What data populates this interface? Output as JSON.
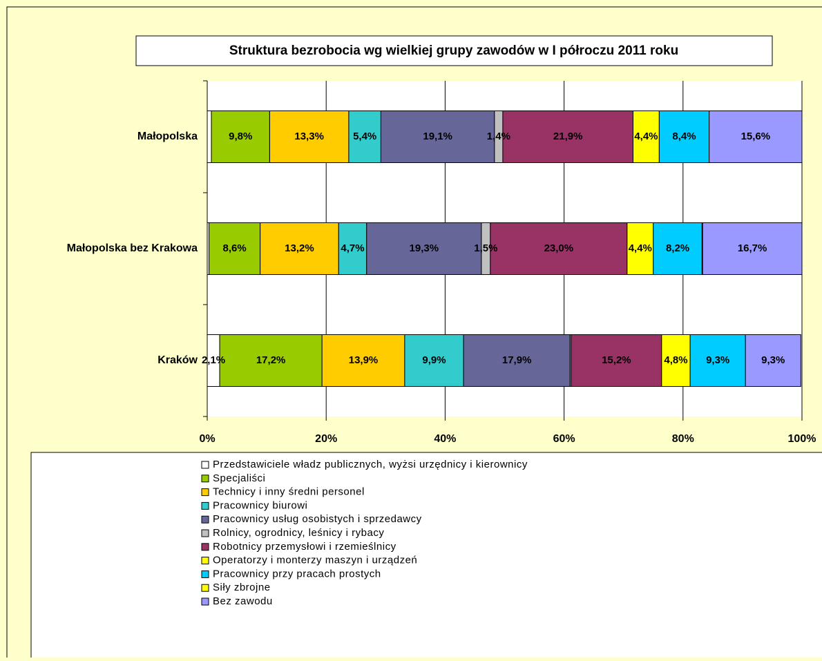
{
  "chart_data": {
    "type": "stacked-bar-horizontal",
    "title": "Struktura bezrobocia wg wielkiej grupy zawodów w I półroczu 2011 roku",
    "categories": [
      "Małopolska",
      "Małopolska bez Krakowa",
      "Kraków"
    ],
    "series": [
      {
        "name": "Przedstawiciele władz publicznych, wyżsi urzędnicy i kierownicy",
        "color": "#ffffff",
        "values": [
          0.7,
          0.3,
          2.1
        ],
        "value_labels": [
          null,
          null,
          "2,1%"
        ]
      },
      {
        "name": "Specjaliści",
        "color": "#99cc00",
        "values": [
          9.8,
          8.6,
          17.2
        ],
        "value_labels": [
          "9,8%",
          "8,6%",
          "17,2%"
        ]
      },
      {
        "name": "Technicy i inny średni personel",
        "color": "#ffcc00",
        "values": [
          13.3,
          13.2,
          13.9
        ],
        "value_labels": [
          "13,3%",
          "13,2%",
          "13,9%"
        ]
      },
      {
        "name": "Pracownicy biurowi",
        "color": "#33cccc",
        "values": [
          5.4,
          4.7,
          9.9
        ],
        "value_labels": [
          "5,4%",
          "4,7%",
          "9,9%"
        ]
      },
      {
        "name": "Pracownicy usług osobistych i sprzedawcy",
        "color": "#666699",
        "values": [
          19.1,
          19.3,
          17.9
        ],
        "value_labels": [
          "19,1%",
          "19,3%",
          "17,9%"
        ]
      },
      {
        "name": "Rolnicy, ogrodnicy, leśnicy i rybacy",
        "color": "#c0c0c0",
        "values": [
          1.4,
          1.5,
          0.2
        ],
        "value_labels": [
          "1,4%",
          "1,5%",
          null
        ]
      },
      {
        "name": "Robotnicy przemysłowi i rzemieślnicy",
        "color": "#993366",
        "values": [
          21.9,
          23.0,
          15.2
        ],
        "value_labels": [
          "21,9%",
          "23,0%",
          "15,2%"
        ]
      },
      {
        "name": "Operatorzy i monterzy maszyn i urządzeń",
        "color": "#ffff00",
        "values": [
          4.4,
          4.4,
          4.8
        ],
        "value_labels": [
          "4,4%",
          "4,4%",
          "4,8%"
        ]
      },
      {
        "name": "Pracownicy przy pracach prostych",
        "color": "#00ccff",
        "values": [
          8.4,
          8.2,
          9.3
        ],
        "value_labels": [
          "8,4%",
          "8,2%",
          "9,3%"
        ]
      },
      {
        "name": "Siły zbrojne",
        "color": "#ffff00",
        "values": [
          0.0,
          0.1,
          0.0
        ],
        "value_labels": [
          null,
          null,
          null
        ]
      },
      {
        "name": "Bez zawodu",
        "color": "#9999ff",
        "values": [
          15.6,
          16.7,
          9.3
        ],
        "value_labels": [
          "15,6%",
          "16,7%",
          "9,3%"
        ]
      }
    ],
    "xlim": [
      0,
      100
    ],
    "xticks": [
      {
        "value": 0,
        "label": "0%"
      },
      {
        "value": 20,
        "label": "20%"
      },
      {
        "value": 40,
        "label": "40%"
      },
      {
        "value": 60,
        "label": "60%"
      },
      {
        "value": 80,
        "label": "80%"
      },
      {
        "value": 100,
        "label": "100%"
      }
    ],
    "grid": true,
    "legend": "bottom"
  }
}
